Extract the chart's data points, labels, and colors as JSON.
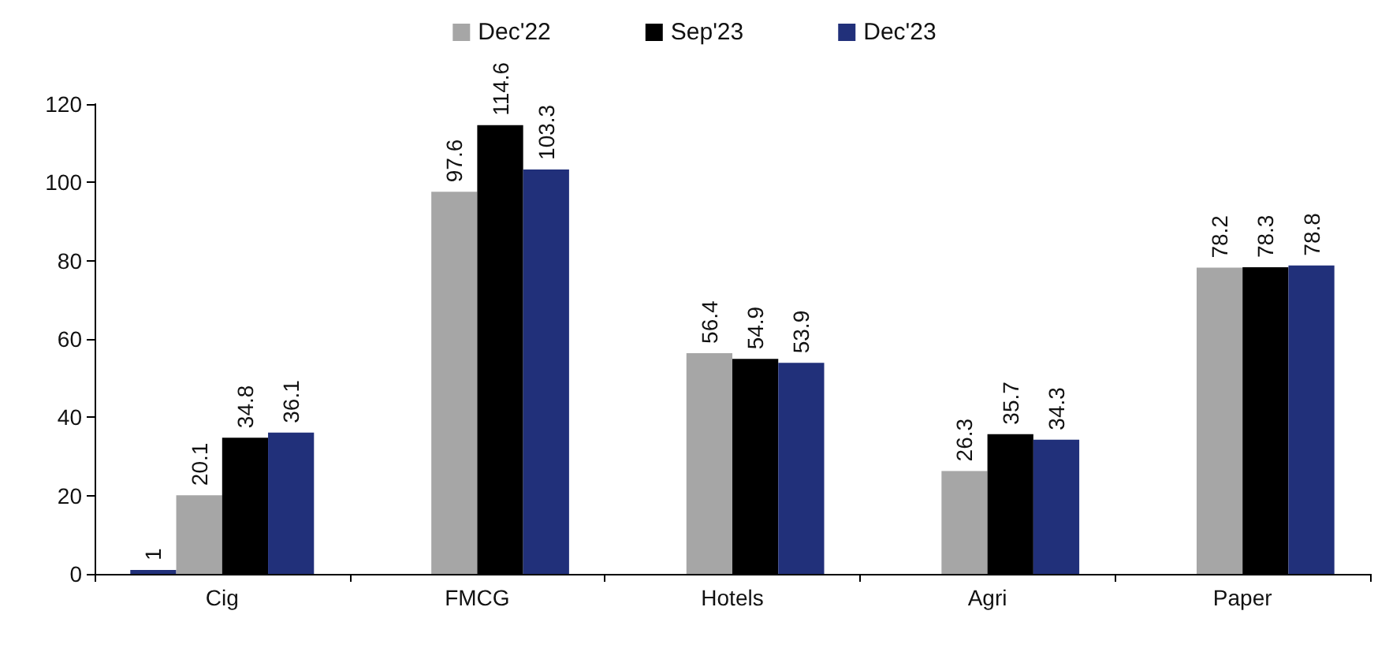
{
  "chart_data": {
    "type": "bar",
    "categories": [
      "Cig",
      "FMCG",
      "Hotels",
      "Agri",
      "Paper"
    ],
    "series": [
      {
        "color": "#21307a",
        "values": [
          1,
          null,
          null,
          null,
          null
        ]
      },
      {
        "name": "Dec'22",
        "color": "#a6a6a6",
        "values": [
          20.1,
          97.6,
          56.4,
          26.3,
          78.2
        ]
      },
      {
        "name": "Sep'23",
        "color": "#000000",
        "values": [
          34.8,
          114.6,
          54.9,
          35.7,
          78.3
        ]
      },
      {
        "name": "Dec'23",
        "color": "#21307a",
        "values": [
          36.1,
          103.3,
          53.9,
          34.3,
          78.8
        ]
      }
    ],
    "ylim": [
      0,
      120
    ],
    "yticks": [
      0,
      20,
      40,
      60,
      80,
      100,
      120
    ],
    "grid": false,
    "legend": "top",
    "data_labels": true
  }
}
